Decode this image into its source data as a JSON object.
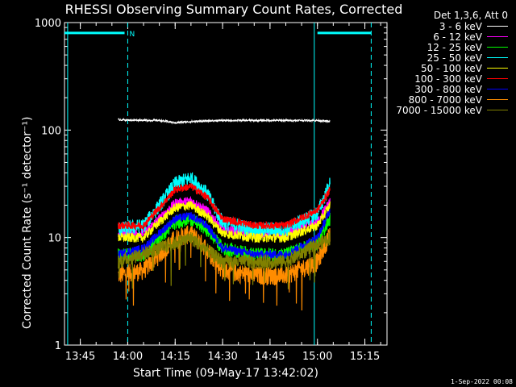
{
  "chart_data": {
    "type": "line",
    "title": "RHESSI Observing Summary Count Rates, Corrected",
    "xlabel": "Start Time (09-May-17 13:42:02)",
    "ylabel": "Corrected Count Rate (s⁻¹ detector⁻¹)",
    "y_scale": "log",
    "ylim": [
      1,
      1000
    ],
    "xlim": [
      "13:40",
      "15:22"
    ],
    "x_ticks": [
      "13:45",
      "14:00",
      "14:15",
      "14:30",
      "14:45",
      "15:00",
      "15:15"
    ],
    "y_ticks": [
      1,
      10,
      100,
      1000
    ],
    "y_tick_labels": [
      "1",
      "10",
      "100",
      "1000"
    ],
    "legend_header": "Det 1,3,6, Att 0",
    "legend_position": "top-right, outside plot",
    "series": [
      {
        "name": "3 - 6 keV",
        "color": "#ffffff",
        "x": [
          "13:57",
          "14:00",
          "14:10",
          "14:15",
          "14:20",
          "14:30",
          "14:40",
          "14:50",
          "15:00",
          "15:04"
        ],
        "values": [
          125,
          124,
          123,
          117,
          120,
          123,
          123,
          123,
          123,
          120
        ]
      },
      {
        "name": "6 - 12 keV",
        "color": "#ff00ff",
        "x": [
          "13:57",
          "14:05",
          "14:10",
          "14:15",
          "14:20",
          "14:25",
          "14:30",
          "14:40",
          "14:50",
          "15:00",
          "15:04"
        ],
        "values": [
          11,
          11,
          15,
          21,
          22,
          18,
          12,
          11,
          11,
          14,
          22
        ]
      },
      {
        "name": "12 - 25 keV",
        "color": "#00ff00",
        "x": [
          "13:57",
          "14:05",
          "14:10",
          "14:15",
          "14:20",
          "14:25",
          "14:30",
          "14:40",
          "14:50",
          "15:00",
          "15:04"
        ],
        "values": [
          7,
          7,
          10,
          14,
          15,
          12,
          8,
          7,
          7,
          9,
          15
        ]
      },
      {
        "name": "25 - 50 keV",
        "color": "#00ffff",
        "x": [
          "13:57",
          "14:05",
          "14:10",
          "14:15",
          "14:20",
          "14:25",
          "14:30",
          "14:40",
          "14:50",
          "15:00",
          "15:04"
        ],
        "values": [
          12,
          13,
          20,
          32,
          36,
          26,
          14,
          12,
          12,
          17,
          32
        ]
      },
      {
        "name": "50 - 100 keV",
        "color": "#ffff00",
        "x": [
          "13:57",
          "14:05",
          "14:10",
          "14:15",
          "14:20",
          "14:25",
          "14:30",
          "14:40",
          "14:50",
          "15:00",
          "15:04"
        ],
        "values": [
          10,
          10,
          14,
          19,
          20,
          16,
          11,
          10,
          10,
          13,
          20
        ]
      },
      {
        "name": "100 - 300 keV",
        "color": "#ff0000",
        "x": [
          "13:57",
          "14:05",
          "14:10",
          "14:15",
          "14:20",
          "14:25",
          "14:30",
          "14:40",
          "14:50",
          "15:00",
          "15:04"
        ],
        "values": [
          13,
          13,
          19,
          28,
          30,
          24,
          15,
          13,
          13,
          18,
          28
        ]
      },
      {
        "name": "300 - 800 keV",
        "color": "#0000ff",
        "x": [
          "13:57",
          "14:05",
          "14:10",
          "14:15",
          "14:20",
          "14:25",
          "14:30",
          "14:40",
          "14:50",
          "15:00",
          "15:04"
        ],
        "values": [
          7,
          8,
          11,
          15,
          16,
          13,
          8,
          7,
          7,
          10,
          18
        ]
      },
      {
        "name": "800 - 7000 keV",
        "color": "#ff8c00",
        "x": [
          "13:57",
          "14:05",
          "14:10",
          "14:15",
          "14:20",
          "14:25",
          "14:30",
          "14:40",
          "14:50",
          "15:00",
          "15:04"
        ],
        "values": [
          4.5,
          5,
          7,
          10,
          11,
          8,
          5,
          4.5,
          4.5,
          6,
          11
        ]
      },
      {
        "name": "7000 - 15000 keV",
        "color": "#808000",
        "x": [
          "13:57",
          "14:10",
          "14:20",
          "14:30",
          "14:50",
          "15:04"
        ],
        "values": [
          6,
          8,
          10,
          6,
          6,
          10
        ]
      }
    ],
    "annotations": {
      "attenuator_bars": [
        {
          "from": "13:40",
          "to": "13:59",
          "y": 800,
          "color": "#00ffff",
          "label": "N"
        },
        {
          "from": "15:00",
          "to": "15:17",
          "y": 800,
          "color": "#00ffff"
        }
      ],
      "solid_lines_at": [
        "13:41",
        "14:59"
      ],
      "dashed_lines_at": [
        "14:00",
        "15:17"
      ]
    }
  },
  "footer": "1-Sep-2022 00:08"
}
